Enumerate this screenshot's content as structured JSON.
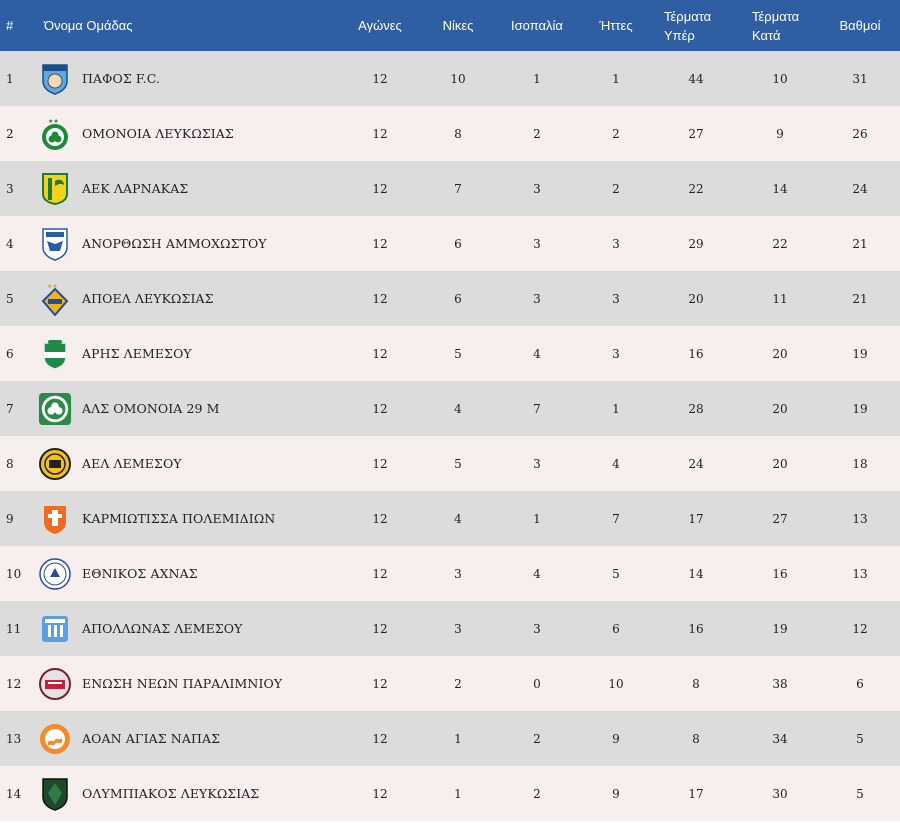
{
  "header": {
    "pos": "#",
    "team": "Όνομα Ομάδας",
    "played": "Αγώνες",
    "wins": "Νίκες",
    "draws": "Ισοπαλία",
    "losses": "Ήττες",
    "gf_line1": "Τέρματα",
    "gf_line2": "Υπέρ",
    "ga_line1": "Τέρματα",
    "ga_line2": "Κατά",
    "points": "Βαθμοί"
  },
  "colors": {
    "header_bg": "#2f5ea3",
    "row_odd": "#dcdcdc",
    "row_even": "#f7eeee"
  },
  "rows": [
    {
      "pos": "1",
      "team": "ΠΑΦΟΣ F.C.",
      "played": "12",
      "wins": "10",
      "draws": "1",
      "losses": "1",
      "gf": "44",
      "ga": "10",
      "pts": "31",
      "icon": "pafos-crest-icon"
    },
    {
      "pos": "2",
      "team": "ΟΜΟΝΟΙΑ ΛΕΥΚΩΣΙΑΣ",
      "played": "12",
      "wins": "8",
      "draws": "2",
      "losses": "2",
      "gf": "27",
      "ga": "9",
      "pts": "26",
      "icon": "omonoia-crest-icon"
    },
    {
      "pos": "3",
      "team": "ΑΕΚ ΛΑΡΝΑΚΑΣ",
      "played": "12",
      "wins": "7",
      "draws": "3",
      "losses": "2",
      "gf": "22",
      "ga": "14",
      "pts": "24",
      "icon": "aek-crest-icon"
    },
    {
      "pos": "4",
      "team": "ΑΝΟΡΘΩΣΗ ΑΜΜΟΧΩΣΤΟΥ",
      "played": "12",
      "wins": "6",
      "draws": "3",
      "losses": "3",
      "gf": "29",
      "ga": "22",
      "pts": "21",
      "icon": "anorthosis-crest-icon"
    },
    {
      "pos": "5",
      "team": "ΑΠΟΕΛ ΛΕΥΚΩΣΙΑΣ",
      "played": "12",
      "wins": "6",
      "draws": "3",
      "losses": "3",
      "gf": "20",
      "ga": "11",
      "pts": "21",
      "icon": "apoel-crest-icon"
    },
    {
      "pos": "6",
      "team": "ΑΡΗΣ ΛΕΜΕΣΟΥ",
      "played": "12",
      "wins": "5",
      "draws": "4",
      "losses": "3",
      "gf": "16",
      "ga": "20",
      "pts": "19",
      "icon": "aris-crest-icon"
    },
    {
      "pos": "7",
      "team": "ΑΛΣ ΟΜΟΝΟΙΑ 29 Μ",
      "played": "12",
      "wins": "4",
      "draws": "7",
      "losses": "1",
      "gf": "28",
      "ga": "20",
      "pts": "19",
      "icon": "omonoia29m-crest-icon"
    },
    {
      "pos": "8",
      "team": "ΑΕΛ ΛΕΜΕΣΟΥ",
      "played": "12",
      "wins": "5",
      "draws": "3",
      "losses": "4",
      "gf": "24",
      "ga": "20",
      "pts": "18",
      "icon": "ael-crest-icon"
    },
    {
      "pos": "9",
      "team": "ΚΑΡΜΙΩΤΙΣΣΑ ΠΟΛΕΜΙΔΙΩΝ",
      "played": "12",
      "wins": "4",
      "draws": "1",
      "losses": "7",
      "gf": "17",
      "ga": "27",
      "pts": "13",
      "icon": "karmiotissa-crest-icon"
    },
    {
      "pos": "10",
      "team": "ΕΘΝΙΚΟΣ ΑΧΝΑΣ",
      "played": "12",
      "wins": "3",
      "draws": "4",
      "losses": "5",
      "gf": "14",
      "ga": "16",
      "pts": "13",
      "icon": "ethnikos-crest-icon"
    },
    {
      "pos": "11",
      "team": "ΑΠΟΛΛΩΝΑΣ ΛΕΜΕΣΟΥ",
      "played": "12",
      "wins": "3",
      "draws": "3",
      "losses": "6",
      "gf": "16",
      "ga": "19",
      "pts": "12",
      "icon": "apollon-crest-icon"
    },
    {
      "pos": "12",
      "team": "ΕΝΩΣΗ ΝΕΩΝ ΠΑΡΑΛΙΜΝΙΟΥ",
      "played": "12",
      "wins": "2",
      "draws": "0",
      "losses": "10",
      "gf": "8",
      "ga": "38",
      "pts": "6",
      "icon": "enp-crest-icon"
    },
    {
      "pos": "13",
      "team": "ΑΟΑΝ ΑΓΙΑΣ ΝΑΠΑΣ",
      "played": "12",
      "wins": "1",
      "draws": "2",
      "losses": "9",
      "gf": "8",
      "ga": "34",
      "pts": "5",
      "icon": "aoan-crest-icon"
    },
    {
      "pos": "14",
      "team": "ΟΛΥΜΠΙΑΚΟΣ ΛΕΥΚΩΣΙΑΣ",
      "played": "12",
      "wins": "1",
      "draws": "2",
      "losses": "9",
      "gf": "17",
      "ga": "30",
      "pts": "5",
      "icon": "olympiakos-crest-icon"
    }
  ]
}
